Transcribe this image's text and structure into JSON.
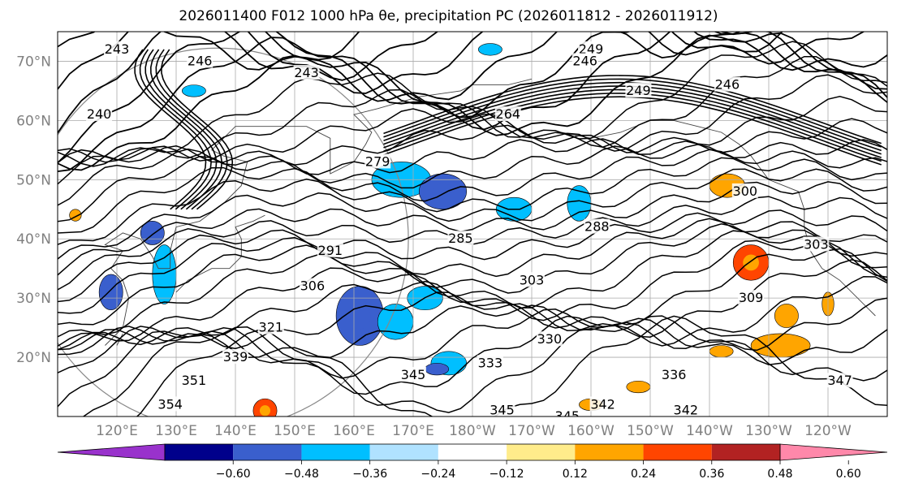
{
  "title": "2026011400 F012 1000 hPa θe, precipitation PC (2026011812 - 2026011912)",
  "map": {
    "lon_range": [
      110,
      250
    ],
    "lat_range": [
      10,
      75
    ],
    "lat_ticks": [
      {
        "value": 20,
        "label": "20°N"
      },
      {
        "value": 30,
        "label": "30°N"
      },
      {
        "value": 40,
        "label": "40°N"
      },
      {
        "value": 50,
        "label": "50°N"
      },
      {
        "value": 60,
        "label": "60°N"
      },
      {
        "value": 70,
        "label": "70°N"
      }
    ],
    "lon_ticks": [
      {
        "value": 120,
        "label": "120°E"
      },
      {
        "value": 130,
        "label": "130°E"
      },
      {
        "value": 140,
        "label": "140°E"
      },
      {
        "value": 150,
        "label": "150°E"
      },
      {
        "value": 160,
        "label": "160°E"
      },
      {
        "value": 170,
        "label": "170°E"
      },
      {
        "value": 180,
        "label": "180°W"
      },
      {
        "value": 190,
        "label": "170°W"
      },
      {
        "value": 200,
        "label": "160°W"
      },
      {
        "value": 210,
        "label": "150°W"
      },
      {
        "value": 220,
        "label": "140°W"
      },
      {
        "value": 230,
        "label": "130°W"
      },
      {
        "value": 240,
        "label": "120°W"
      }
    ],
    "grid": true
  },
  "theta_e_contours": [
    {
      "value": 243,
      "lon": 120,
      "lat": 72
    },
    {
      "value": 246,
      "lon": 134,
      "lat": 70
    },
    {
      "value": 243,
      "lon": 152,
      "lat": 68
    },
    {
      "value": 249,
      "lon": 200,
      "lat": 72
    },
    {
      "value": 246,
      "lon": 199,
      "lat": 70
    },
    {
      "value": 249,
      "lon": 208,
      "lat": 65
    },
    {
      "value": 246,
      "lon": 223,
      "lat": 66
    },
    {
      "value": 240,
      "lon": 117,
      "lat": 61
    },
    {
      "value": 264,
      "lon": 186,
      "lat": 61
    },
    {
      "value": 279,
      "lon": 164,
      "lat": 53
    },
    {
      "value": 285,
      "lon": 178,
      "lat": 40
    },
    {
      "value": 288,
      "lon": 201,
      "lat": 42
    },
    {
      "value": 291,
      "lon": 156,
      "lat": 38
    },
    {
      "value": 300,
      "lon": 226,
      "lat": 48
    },
    {
      "value": 303,
      "lon": 190,
      "lat": 33
    },
    {
      "value": 306,
      "lon": 153,
      "lat": 32
    },
    {
      "value": 303,
      "lon": 238,
      "lat": 39
    },
    {
      "value": 309,
      "lon": 227,
      "lat": 30
    },
    {
      "value": 321,
      "lon": 146,
      "lat": 25
    },
    {
      "value": 330,
      "lon": 193,
      "lat": 23
    },
    {
      "value": 333,
      "lon": 183,
      "lat": 19
    },
    {
      "value": 339,
      "lon": 140,
      "lat": 20
    },
    {
      "value": 345,
      "lon": 170,
      "lat": 17
    },
    {
      "value": 336,
      "lon": 214,
      "lat": 17
    },
    {
      "value": 351,
      "lon": 133,
      "lat": 16
    },
    {
      "value": 354,
      "lon": 129,
      "lat": 12
    },
    {
      "value": 345,
      "lon": 185,
      "lat": 11
    },
    {
      "value": 345,
      "lon": 196,
      "lat": 10
    },
    {
      "value": 342,
      "lon": 202,
      "lat": 12
    },
    {
      "value": 342,
      "lon": 216,
      "lat": 11
    },
    {
      "value": 347,
      "lon": 242,
      "lat": 16
    }
  ],
  "precip_pc_areas": [
    {
      "lon": 168,
      "lat": 50,
      "rx": 5,
      "ry": 3,
      "value": -0.3
    },
    {
      "lon": 175,
      "lat": 48,
      "rx": 4,
      "ry": 3,
      "value": -0.42
    },
    {
      "lon": 187,
      "lat": 45,
      "rx": 3,
      "ry": 2,
      "value": -0.3
    },
    {
      "lon": 198,
      "lat": 46,
      "rx": 2,
      "ry": 3,
      "value": -0.3
    },
    {
      "lon": 161,
      "lat": 27,
      "rx": 4,
      "ry": 5,
      "value": -0.42
    },
    {
      "lon": 167,
      "lat": 26,
      "rx": 3,
      "ry": 3,
      "value": -0.3
    },
    {
      "lon": 172,
      "lat": 30,
      "rx": 3,
      "ry": 2,
      "value": -0.3
    },
    {
      "lon": 176,
      "lat": 19,
      "rx": 3,
      "ry": 2,
      "value": -0.3
    },
    {
      "lon": 174,
      "lat": 18,
      "rx": 2,
      "ry": 1,
      "value": -0.42
    },
    {
      "lon": 128,
      "lat": 34,
      "rx": 2,
      "ry": 5,
      "value": -0.3
    },
    {
      "lon": 119,
      "lat": 31,
      "rx": 2,
      "ry": 3,
      "value": -0.42
    },
    {
      "lon": 126,
      "lat": 41,
      "rx": 2,
      "ry": 2,
      "value": -0.42
    },
    {
      "lon": 133,
      "lat": 65,
      "rx": 2,
      "ry": 1,
      "value": -0.3
    },
    {
      "lon": 183,
      "lat": 72,
      "rx": 2,
      "ry": 1,
      "value": -0.3
    },
    {
      "lon": 227,
      "lat": 36,
      "rx": 3,
      "ry": 3,
      "value": 0.4
    },
    {
      "lon": 233,
      "lat": 27,
      "rx": 2,
      "ry": 2,
      "value": 0.3
    },
    {
      "lon": 232,
      "lat": 22,
      "rx": 5,
      "ry": 2,
      "value": 0.3
    },
    {
      "lon": 222,
      "lat": 21,
      "rx": 2,
      "ry": 1,
      "value": 0.3
    },
    {
      "lon": 223,
      "lat": 49,
      "rx": 3,
      "ry": 2,
      "value": 0.3
    },
    {
      "lon": 208,
      "lat": 15,
      "rx": 2,
      "ry": 1,
      "value": 0.3
    },
    {
      "lon": 145,
      "lat": 11,
      "rx": 2,
      "ry": 2,
      "value": 0.42
    },
    {
      "lon": 200,
      "lat": 12,
      "rx": 2,
      "ry": 1,
      "value": 0.3
    },
    {
      "lon": 240,
      "lat": 29,
      "rx": 1,
      "ry": 2,
      "value": 0.3
    },
    {
      "lon": 113,
      "lat": 44,
      "rx": 1,
      "ry": 1,
      "value": 0.3
    }
  ],
  "colorbar": {
    "bounds": [
      -0.72,
      -0.6,
      -0.48,
      -0.36,
      -0.24,
      -0.12,
      0.12,
      0.24,
      0.36,
      0.48,
      0.6,
      0.72
    ],
    "colors": [
      "#9932cc",
      "#00008b",
      "#3a5fcd",
      "#00bfff",
      "#b0e2ff",
      "#ffffff",
      "#ffec8b",
      "#ffa500",
      "#ff4500",
      "#b22222",
      "#ff88aa"
    ],
    "extend_colors": {
      "low": "#9932cc",
      "high": "#ff88aa"
    },
    "tick_labels": [
      "−0.60",
      "−0.48",
      "−0.36",
      "−0.24",
      "−0.12",
      "0.12",
      "0.24",
      "0.36",
      "0.48",
      "0.60"
    ]
  }
}
